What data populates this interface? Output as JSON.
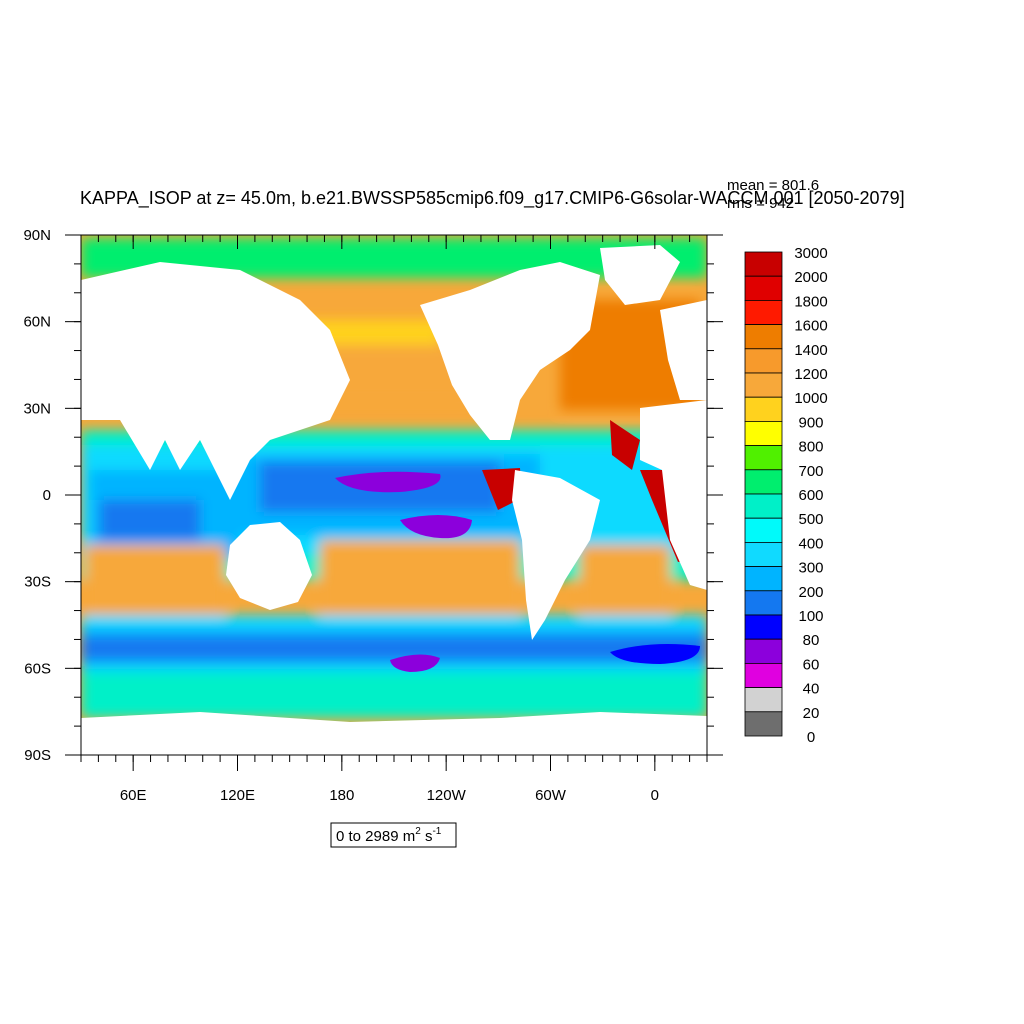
{
  "chart_data": {
    "type": "heatmap",
    "title": "KAPPA_ISOP at z=  45.0m, b.e21.BWSSP585cmip6.f09_g17.CMIP6-G6solar-WACCM.001 [2050-2079]",
    "stats": {
      "mean": "mean = 801.6",
      "rms": "rms = 942"
    },
    "range_label": {
      "text": "0 to 2989 m",
      "sup1": "2",
      "mid": " s",
      "sup2": "-1"
    },
    "x_axis": {
      "ticks": [
        "60E",
        "120E",
        "180",
        "120W",
        "60W",
        "0"
      ],
      "tick_lon": [
        60,
        120,
        180,
        240,
        300,
        360
      ],
      "range": [
        30,
        390
      ]
    },
    "y_axis": {
      "ticks": [
        "90N",
        "60N",
        "30N",
        "0",
        "30S",
        "60S",
        "90S"
      ],
      "tick_lat": [
        90,
        60,
        30,
        0,
        -30,
        -60,
        -90
      ],
      "range": [
        -90,
        90
      ]
    },
    "colorbar": {
      "levels": [
        "3000",
        "2000",
        "1800",
        "1600",
        "1400",
        "1200",
        "1000",
        "900",
        "800",
        "700",
        "600",
        "500",
        "400",
        "300",
        "200",
        "100",
        "80",
        "60",
        "40",
        "20",
        "0"
      ],
      "colors": [
        "#c80000",
        "#e00000",
        "#ff1a00",
        "#ee7d00",
        "#f79a2c",
        "#f7a83a",
        "#ffd21e",
        "#ffff00",
        "#50f000",
        "#00ee6e",
        "#00f0c8",
        "#00fafa",
        "#10daff",
        "#00b4ff",
        "#1478f0",
        "#0000ff",
        "#8c00dc",
        "#e000e0",
        "#d2d2d2",
        "#6e6e6e"
      ]
    }
  }
}
